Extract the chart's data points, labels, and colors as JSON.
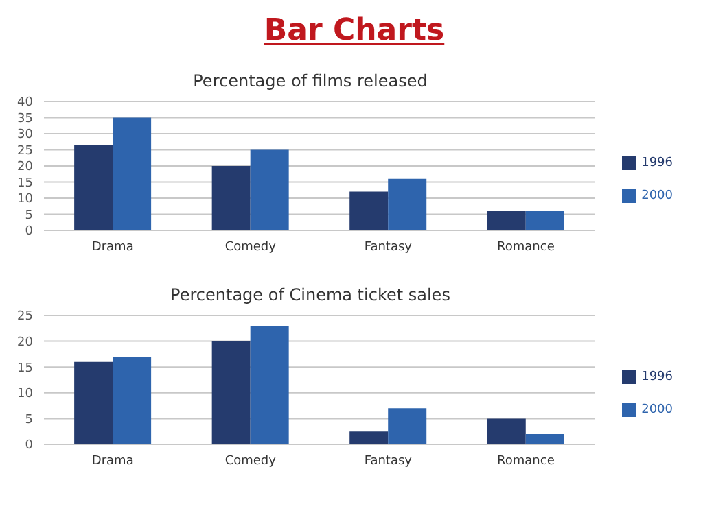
{
  "chart_data": [
    {
      "type": "bar",
      "title": "Bar Charts",
      "subtitle": "Percentage of films released",
      "categories": [
        "Drama",
        "Comedy",
        "Fantasy",
        "Romance"
      ],
      "series": [
        {
          "name": "1996",
          "color": "#253b6e",
          "values": [
            26.5,
            20,
            12,
            6
          ]
        },
        {
          "name": "2000",
          "color": "#2e64ad",
          "values": [
            35,
            25,
            16,
            6
          ]
        }
      ],
      "ylim": [
        0,
        40
      ],
      "yticks": [
        0,
        5,
        10,
        15,
        20,
        25,
        30,
        35,
        40
      ],
      "grid": "y",
      "legend": "right"
    },
    {
      "type": "bar",
      "subtitle": "Percentage of Cinema ticket sales",
      "categories": [
        "Drama",
        "Comedy",
        "Fantasy",
        "Romance"
      ],
      "series": [
        {
          "name": "1996",
          "color": "#253b6e",
          "values": [
            16,
            20,
            2.5,
            5
          ]
        },
        {
          "name": "2000",
          "color": "#2e64ad",
          "values": [
            17,
            23,
            7,
            2
          ]
        }
      ],
      "ylim": [
        0,
        25
      ],
      "yticks": [
        0,
        5,
        10,
        15,
        20,
        25
      ],
      "grid": "y",
      "legend": "right"
    }
  ]
}
